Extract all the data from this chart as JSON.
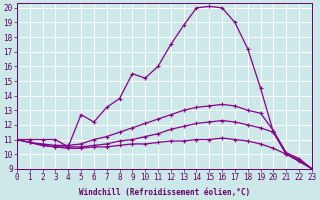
{
  "xlabel": "Windchill (Refroidissement éolien,°C)",
  "background_color": "#cce8e8",
  "line_color": "#880088",
  "grid_color": "#aadddd",
  "x_ticks": [
    0,
    1,
    2,
    3,
    4,
    5,
    6,
    7,
    8,
    9,
    10,
    11,
    12,
    13,
    14,
    15,
    16,
    17,
    18,
    19,
    20,
    21,
    22,
    23
  ],
  "y_ticks": [
    9,
    10,
    11,
    12,
    13,
    14,
    15,
    16,
    17,
    18,
    19,
    20
  ],
  "xlim": [
    0,
    23
  ],
  "ylim": [
    9,
    20.3
  ],
  "curve1_x": [
    0,
    1,
    2,
    3,
    4,
    5,
    6,
    7,
    8,
    9,
    10,
    11,
    12,
    13,
    14,
    15,
    16,
    17,
    18,
    19,
    20,
    21,
    22,
    23
  ],
  "curve1_y": [
    11.0,
    11.0,
    11.0,
    11.0,
    10.5,
    12.7,
    12.2,
    13.2,
    13.8,
    15.5,
    15.2,
    16.0,
    17.5,
    18.8,
    20.0,
    20.1,
    20.0,
    19.0,
    17.2,
    14.5,
    11.5,
    10.0,
    9.5,
    9.0
  ],
  "curve2_x": [
    0,
    1,
    2,
    3,
    4,
    5,
    6,
    7,
    8,
    9,
    10,
    11,
    12,
    13,
    14,
    15,
    16,
    17,
    18,
    19,
    20,
    21,
    22,
    23
  ],
  "curve2_y": [
    11.0,
    10.8,
    10.7,
    10.6,
    10.6,
    10.7,
    11.0,
    11.2,
    11.5,
    11.8,
    12.1,
    12.4,
    12.7,
    13.0,
    13.2,
    13.3,
    13.4,
    13.3,
    13.0,
    12.8,
    11.6,
    10.1,
    9.7,
    9.0
  ],
  "curve3_x": [
    0,
    1,
    2,
    3,
    4,
    5,
    6,
    7,
    8,
    9,
    10,
    11,
    12,
    13,
    14,
    15,
    16,
    17,
    18,
    19,
    20,
    21,
    22,
    23
  ],
  "curve3_y": [
    11.0,
    10.8,
    10.6,
    10.5,
    10.5,
    10.5,
    10.6,
    10.7,
    10.9,
    11.0,
    11.2,
    11.4,
    11.7,
    11.9,
    12.1,
    12.2,
    12.3,
    12.2,
    12.0,
    11.8,
    11.5,
    10.0,
    9.6,
    9.0
  ],
  "curve4_x": [
    0,
    1,
    2,
    3,
    4,
    5,
    6,
    7,
    8,
    9,
    10,
    11,
    12,
    13,
    14,
    15,
    16,
    17,
    18,
    19,
    20,
    21,
    22,
    23
  ],
  "curve4_y": [
    11.0,
    10.8,
    10.6,
    10.5,
    10.4,
    10.4,
    10.5,
    10.5,
    10.6,
    10.7,
    10.7,
    10.8,
    10.9,
    10.9,
    11.0,
    11.0,
    11.1,
    11.0,
    10.9,
    10.7,
    10.4,
    10.0,
    9.6,
    9.0
  ],
  "label_color": "#660066",
  "tick_fontsize": 5.5,
  "xlabel_fontsize": 5.5
}
